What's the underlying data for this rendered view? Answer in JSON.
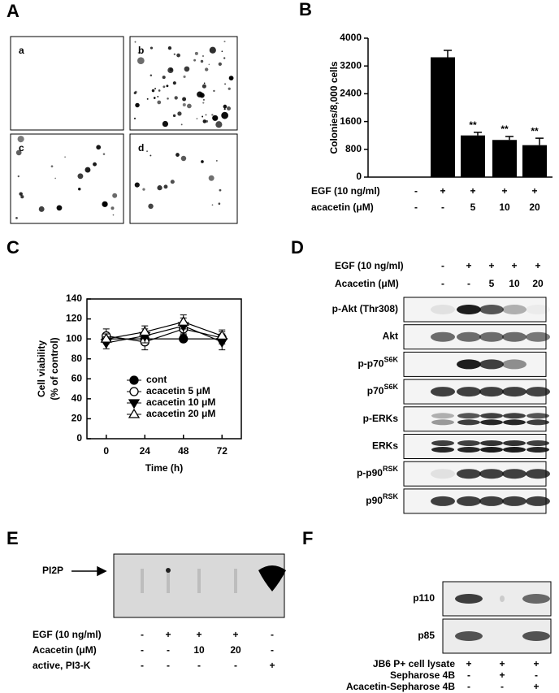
{
  "panel_labels": [
    "A",
    "B",
    "C",
    "D",
    "E",
    "F"
  ],
  "colony_images": {
    "labels": [
      "a",
      "b",
      "c",
      "d"
    ]
  },
  "chart_data": [
    {
      "type": "bar",
      "y_label": "Colonies/8,000 cells",
      "values": [
        null,
        3450,
        1200,
        1070,
        920
      ],
      "errors": [
        null,
        200,
        90,
        100,
        200
      ],
      "annotations": [
        null,
        null,
        "**",
        "**",
        "**"
      ],
      "color": "#000000",
      "ylim": [
        0,
        4000
      ],
      "yticks": [
        0,
        800,
        1600,
        2400,
        3200,
        4000
      ],
      "treatments": [
        {
          "label": "EGF (10 ng/ml)",
          "values": [
            "-",
            "+",
            "+",
            "+",
            "+"
          ]
        },
        {
          "label": "acacetin (μM)",
          "values": [
            "-",
            "-",
            "5",
            "10",
            "20"
          ]
        }
      ]
    },
    {
      "type": "line",
      "x_label": "Time (h)",
      "y_label": [
        "Cell viability",
        "(% of control)"
      ],
      "x": [
        0,
        24,
        48,
        72
      ],
      "xlim": [
        -12,
        84
      ],
      "ylim": [
        0,
        140
      ],
      "xticks": [
        0,
        24,
        48,
        72
      ],
      "yticks": [
        0,
        20,
        40,
        60,
        80,
        100,
        120,
        140
      ],
      "legend": "lower-right",
      "series": [
        {
          "name": "cont",
          "color": "#000000",
          "marker": "filled-circle",
          "values": [
            100,
            100,
            100,
            100
          ]
        },
        {
          "name": "acacetin 5 μM",
          "color": "#000000",
          "marker": "open-circle",
          "values": [
            103,
            97,
            110,
            101
          ],
          "errors": [
            7,
            8,
            6,
            6
          ]
        },
        {
          "name": "acacetin 10 μM",
          "color": "#000000",
          "marker": "filled-triangle-down",
          "values": [
            96,
            103,
            113,
            97
          ],
          "errors": [
            6,
            7,
            8,
            8
          ]
        },
        {
          "name": "acacetin 20 μM",
          "color": "#000000",
          "marker": "open-triangle-up",
          "values": [
            100,
            107,
            117,
            103
          ],
          "errors": [
            5,
            6,
            7,
            6
          ]
        }
      ]
    }
  ],
  "blot_d": {
    "treatments": [
      {
        "label": "EGF (10 ng/ml)",
        "values": [
          "-",
          "+",
          "+",
          "+",
          "+"
        ]
      },
      {
        "label": "Acacetin (μM)",
        "values": [
          "-",
          "-",
          "5",
          "10",
          "20"
        ]
      }
    ],
    "rows": [
      {
        "label": "p-Akt (Thr308)"
      },
      {
        "label": "Akt"
      },
      {
        "label": "p-p70",
        "sup": "S6K"
      },
      {
        "label": "p70",
        "sup": "S6K"
      },
      {
        "label": "p-ERKs"
      },
      {
        "label": "ERKs"
      },
      {
        "label": "p-p90",
        "sup": "RSK"
      },
      {
        "label": "p90",
        "sup": "RSK"
      }
    ]
  },
  "blot_e": {
    "marker": "PI2P",
    "treatments": [
      {
        "label": "EGF (10 ng/ml)",
        "values": [
          "-",
          "+",
          "+",
          "+",
          "-"
        ]
      },
      {
        "label": "Acacetin (μM)",
        "values": [
          "-",
          "-",
          "10",
          "20",
          "-"
        ]
      },
      {
        "label": "active, PI3-K",
        "values": [
          "-",
          "-",
          "-",
          "-",
          "+"
        ]
      }
    ]
  },
  "blot_f": {
    "rows": [
      {
        "label": "p110"
      },
      {
        "label": "p85"
      }
    ],
    "treatments": [
      {
        "label": "JB6 P+ cell lysate",
        "values": [
          "+",
          "+",
          "+"
        ]
      },
      {
        "label": "Sepharose 4B",
        "values": [
          "-",
          "+",
          "-"
        ]
      },
      {
        "label": "Acacetin-Sepharose 4B",
        "values": [
          "-",
          "-",
          "+"
        ]
      }
    ]
  }
}
